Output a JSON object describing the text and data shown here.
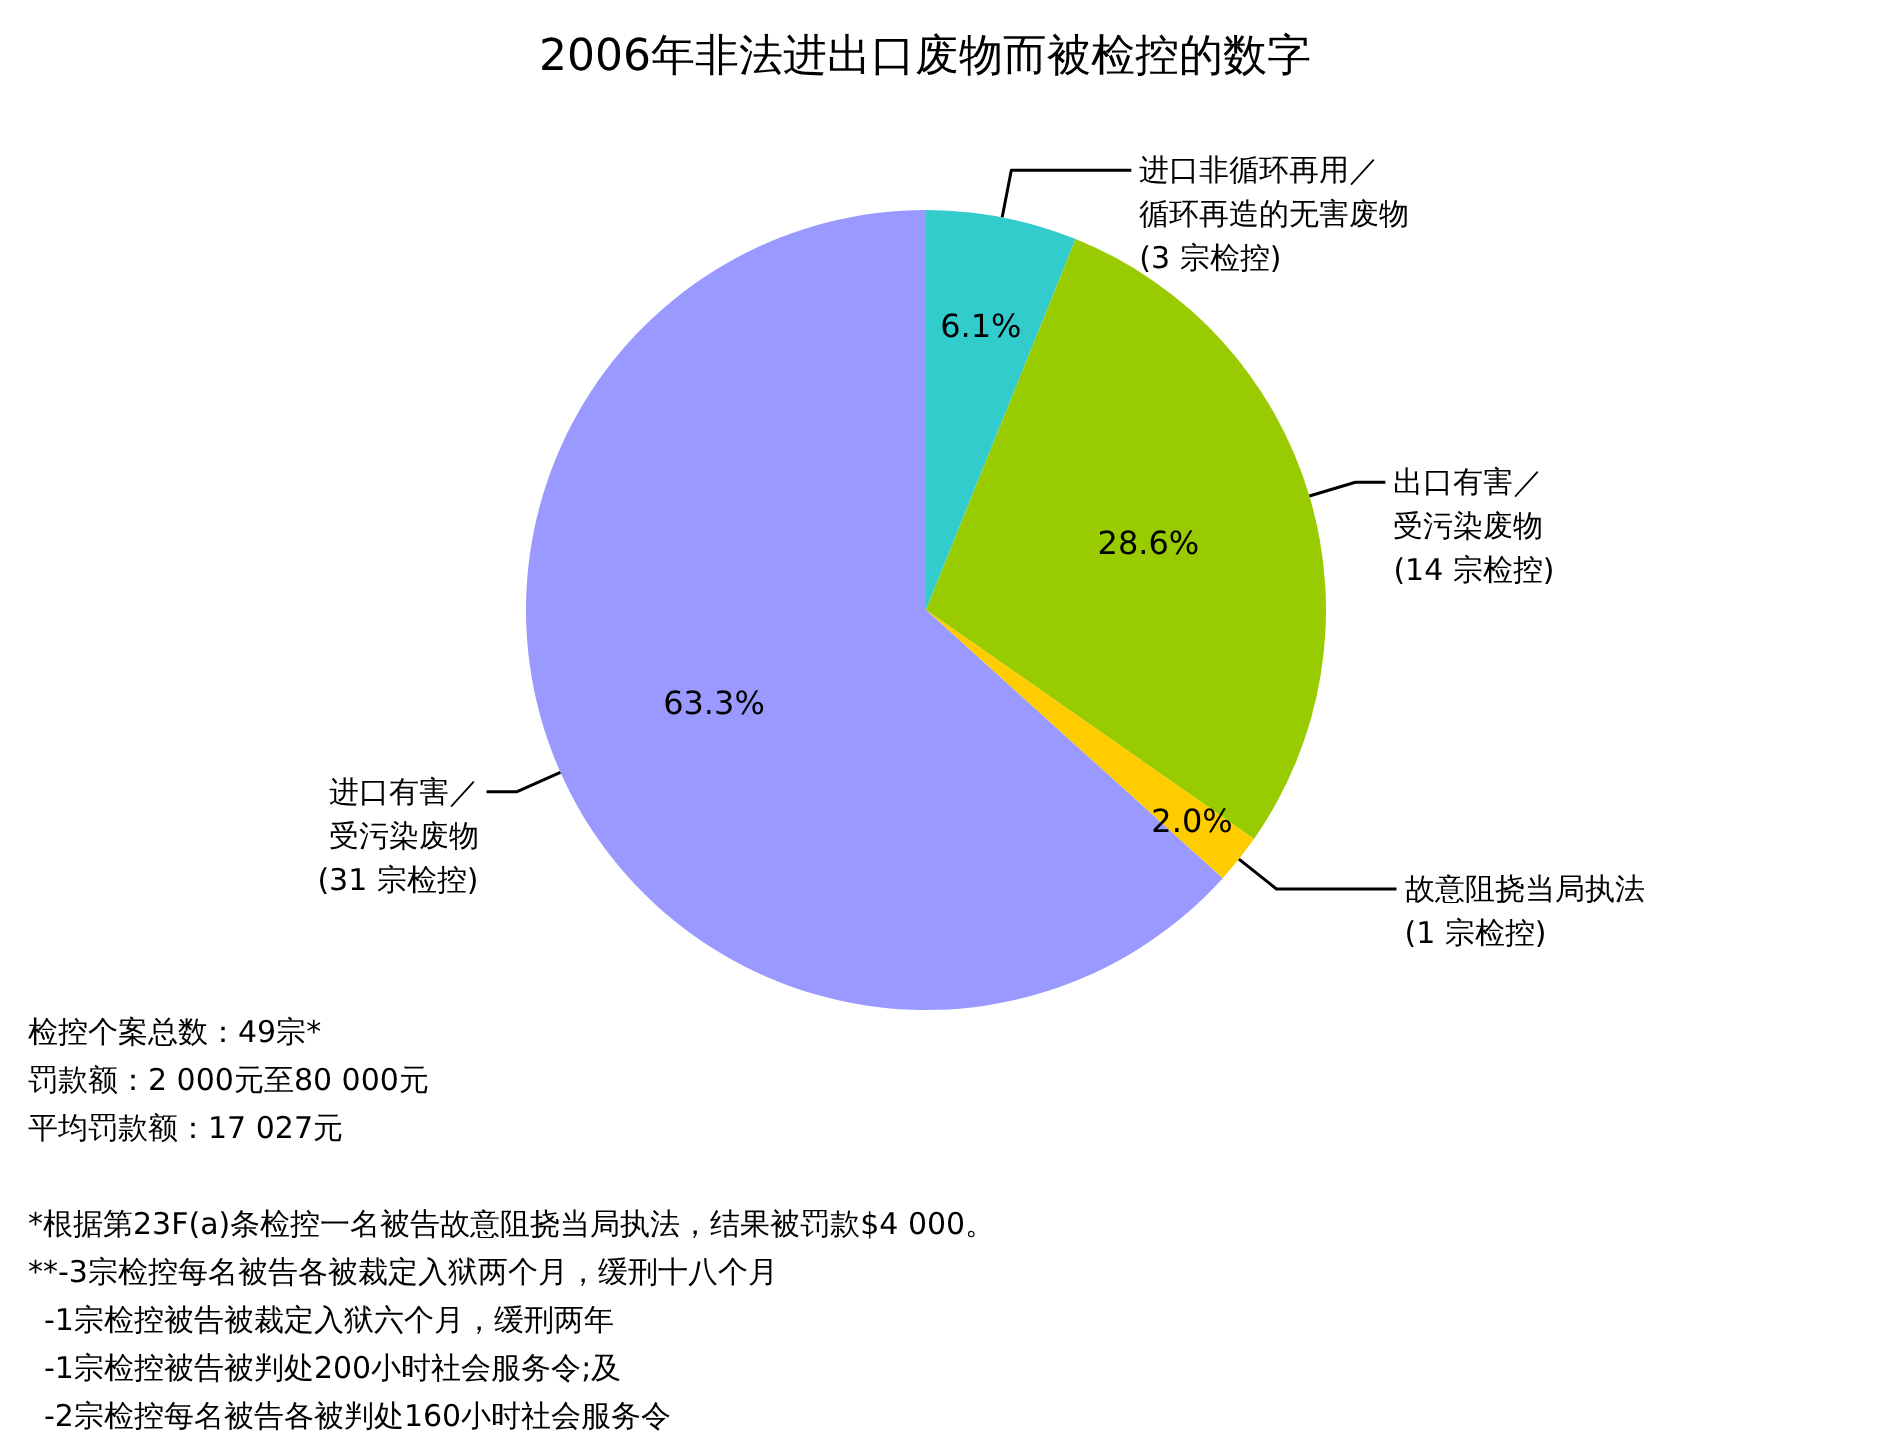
{
  "chart_data": {
    "type": "pie",
    "title": "2006年非法进出口废物而被检控的数字",
    "categories": [
      "进口非循环再用／循环再造的无害废物(3 宗检控)",
      "出口有害／受污染废物(14 宗检控)",
      "故意阻挠当局执法(1 宗检控)",
      "进口有害／受污染废物(31 宗检控)"
    ],
    "values": [
      6.1,
      28.6,
      2.0,
      63.3
    ],
    "colors": [
      "#33cccc",
      "#99cc00",
      "#ffcc00",
      "#9999ff"
    ],
    "value_labels": [
      "6.1%",
      "28.6%",
      "2.0%",
      "63.3%"
    ],
    "annotations": [
      "检控个案总数：49宗*",
      "罚款额：2 000元至80 000元",
      "平均罚款额：17 027元",
      "*根据第23F(a)条检控一名被告故意阻挠当局执法，结果被罚款$4 000。",
      "**-3宗检控每名被告各被裁定入狱两个月，缓刑十八个月",
      "-1宗检控被告被裁定入狱六个月，缓刑两年",
      "-1宗检控被告被判处200小时社会服务令;及",
      "-2宗检控每名被告各被判处160小时社会服务令"
    ]
  }
}
